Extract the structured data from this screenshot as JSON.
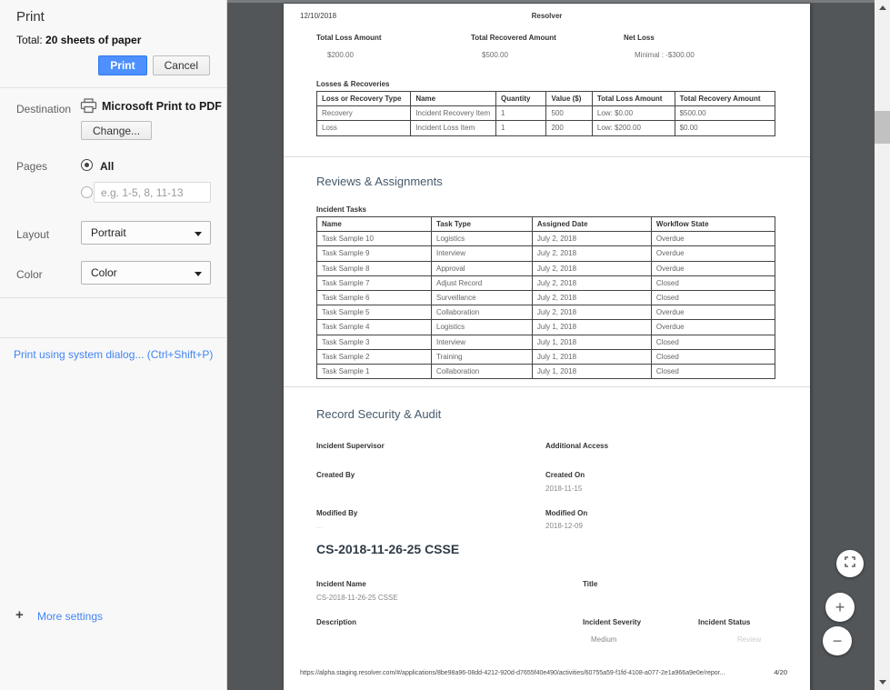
{
  "print_dialog": {
    "title": "Print",
    "total_label": "Total: ",
    "total_value": "20 sheets of paper",
    "print_button": "Print",
    "cancel_button": "Cancel",
    "destination": {
      "label": "Destination",
      "printer_name": "Microsoft Print to PDF",
      "change_button": "Change..."
    },
    "pages": {
      "label": "Pages",
      "all_option": "All",
      "range_placeholder": "e.g. 1-5, 8, 11-13"
    },
    "layout": {
      "label": "Layout",
      "value": "Portrait"
    },
    "color": {
      "label": "Color",
      "value": "Color"
    },
    "more_settings": {
      "plus_icon": "+",
      "label": "More settings"
    },
    "system_dialog_link": "Print using system dialog... (Ctrl+Shift+P)",
    "accent_blue": "#4d90fe",
    "link_blue": "#4285f4"
  },
  "preview": {
    "header_date": "12/10/2018",
    "header_app": "Resolver",
    "totals": [
      {
        "label": "Total Loss Amount",
        "value": "$200.00"
      },
      {
        "label": "Total Recovered Amount",
        "value": "$500.00"
      },
      {
        "label": "Net Loss",
        "value": "Minimal : -$300.00"
      }
    ],
    "losses_section": {
      "title": "Losses & Recoveries",
      "table": {
        "columns": [
          "Loss or Recovery Type",
          "Name",
          "Quantity",
          "Value ($)",
          "Total Loss Amount",
          "Total Recovery Amount"
        ],
        "rows": [
          [
            "Recovery",
            "Incident Recovery Item",
            "1",
            "500",
            "Low: $0.00",
            "$500.00"
          ],
          [
            "Loss",
            "Incident Loss Item",
            "1",
            "200",
            "Low: $200.00",
            "$0.00"
          ]
        ]
      }
    },
    "reviews_section": {
      "title": "Reviews & Assignments",
      "subtitle": "Incident Tasks",
      "table": {
        "columns": [
          "Name",
          "Task Type",
          "Assigned Date",
          "Workflow State"
        ],
        "rows": [
          [
            "Task Sample 10",
            "Logistics",
            "July 2, 2018",
            "Overdue"
          ],
          [
            "Task Sample 9",
            "Interview",
            "July 2, 2018",
            "Overdue"
          ],
          [
            "Task Sample 8",
            "Approval",
            "July 2, 2018",
            "Overdue"
          ],
          [
            "Task Sample 7",
            "Adjust Record",
            "July 2, 2018",
            "Closed"
          ],
          [
            "Task Sample 6",
            "Surveillance",
            "July 2, 2018",
            "Closed"
          ],
          [
            "Task Sample 5",
            "Collaboration",
            "July 2, 2018",
            "Overdue"
          ],
          [
            "Task Sample 4",
            "Logistics",
            "July 1, 2018",
            "Overdue"
          ],
          [
            "Task Sample 3",
            "Interview",
            "July 1, 2018",
            "Closed"
          ],
          [
            "Task Sample 2",
            "Training",
            "July 1, 2018",
            "Closed"
          ],
          [
            "Task Sample 1",
            "Collaboration",
            "July 1, 2018",
            "Closed"
          ]
        ]
      }
    },
    "security_section": {
      "title": "Record Security & Audit",
      "incident_supervisor_label": "Incident Supervisor",
      "additional_access_label": "Additional Access",
      "created_by_label": "Created By",
      "created_on_label": "Created On",
      "created_on_value": "2018-11-15",
      "modified_by_label": "Modified By",
      "modified_by_value": "...",
      "modified_on_label": "Modified On",
      "modified_on_value": "2018-12-09"
    },
    "incident_section": {
      "title": "CS-2018-11-26-25 CSSE",
      "incident_name_label": "Incident Name",
      "incident_name_value": "CS-2018-11-26-25 CSSE",
      "title_label": "Title",
      "description_label": "Description",
      "severity_label": "Incident Severity",
      "severity_value": "Medium",
      "status_label": "Incident Status",
      "status_value": "Review"
    },
    "footer_url": "https://alpha.staging.resolver.com/#/applications/8be98a96-08dd-4212-920d-d7655f40e490/activities/60755a59-f1fd-4108-a077-2e1a966a9e0e/repor...",
    "footer_page": "4/20"
  },
  "zoom_controls": {
    "zoom_in_glyph": "+",
    "zoom_out_glyph": "−"
  }
}
